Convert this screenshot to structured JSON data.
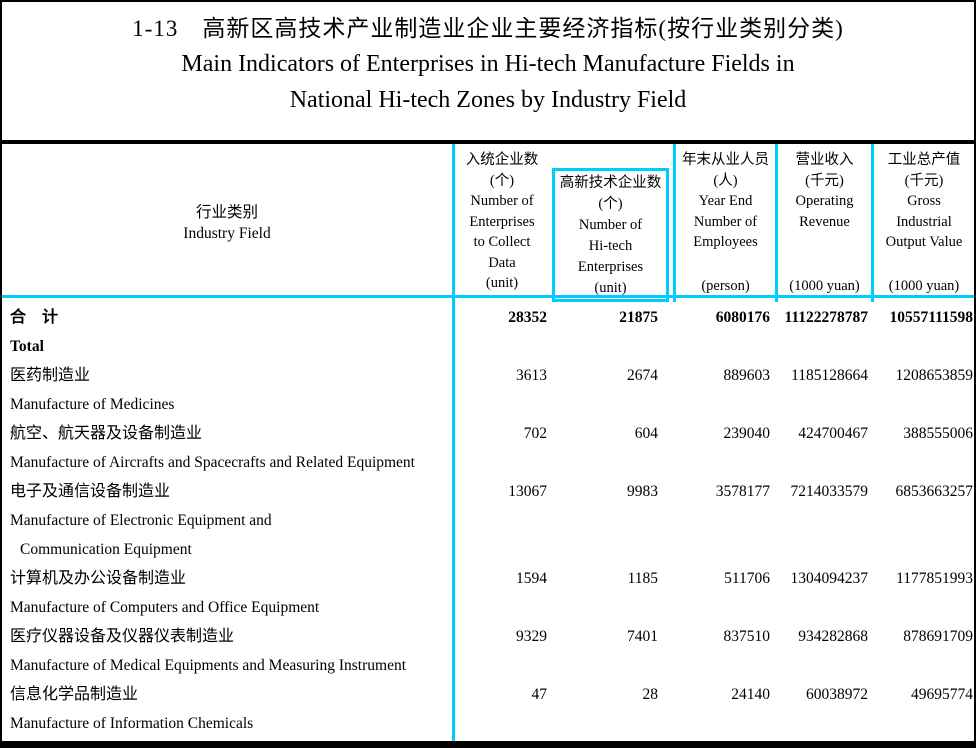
{
  "title": {
    "zh": "1-13　高新区高技术产业制造业企业主要经济指标(按行业类别分类)",
    "en_line1": "Main Indicators of Enterprises in Hi-tech Manufacture Fields in",
    "en_line2": "National Hi-tech Zones by Industry Field"
  },
  "colors": {
    "grid_line": "#00CCFF",
    "rule": "#000000"
  },
  "header": {
    "industry": {
      "zh": "行业类别",
      "en": "Industry Field"
    },
    "col_enterprises": {
      "lines": [
        "入统企业数",
        "(个)",
        "Number of",
        "Enterprises",
        "to Collect",
        "Data",
        "(unit)"
      ]
    },
    "col_hitech": {
      "lines": [
        "高新技术企业数",
        "(个)",
        "Number of",
        "Hi-tech",
        "Enterprises",
        "(unit)"
      ]
    },
    "col_employees": {
      "lines": [
        "年末从业人员",
        "(人)",
        "Year End",
        "Number of",
        "Employees"
      ],
      "unit": "(person)"
    },
    "col_revenue": {
      "lines": [
        "营业收入",
        "(千元)",
        "Operating",
        "Revenue"
      ],
      "unit": "(1000 yuan)"
    },
    "col_output": {
      "lines": [
        "工业总产值",
        "(千元)",
        "Gross",
        "Industrial",
        "Output Value"
      ],
      "unit": "(1000 yuan)"
    }
  },
  "rows": [
    {
      "zh": "合　计",
      "en": [
        "Total"
      ],
      "bold": true,
      "values": [
        "28352",
        "21875",
        "6080176",
        "11122278787",
        "10557111598"
      ]
    },
    {
      "zh": "医药制造业",
      "en": [
        "Manufacture of Medicines"
      ],
      "bold": false,
      "values": [
        "3613",
        "2674",
        "889603",
        "1185128664",
        "1208653859"
      ]
    },
    {
      "zh": "航空、航天器及设备制造业",
      "en": [
        "Manufacture of Aircrafts and Spacecrafts  and Related Equipment"
      ],
      "bold": false,
      "values": [
        "702",
        "604",
        "239040",
        "424700467",
        "388555006"
      ]
    },
    {
      "zh": "电子及通信设备制造业",
      "en": [
        "Manufacture of Electronic Equipment and",
        "Communication Equipment"
      ],
      "bold": false,
      "values": [
        "13067",
        "9983",
        "3578177",
        "7214033579",
        "6853663257"
      ]
    },
    {
      "zh": "计算机及办公设备制造业",
      "en": [
        "Manufacture of Computers and Office Equipment"
      ],
      "bold": false,
      "values": [
        "1594",
        "1185",
        "511706",
        "1304094237",
        "1177851993"
      ]
    },
    {
      "zh": "医疗仪器设备及仪器仪表制造业",
      "en": [
        "Manufacture of Medical Equipments and Measuring Instrument"
      ],
      "bold": false,
      "values": [
        "9329",
        "7401",
        "837510",
        "934282868",
        "878691709"
      ]
    },
    {
      "zh": "信息化学品制造业",
      "en": [
        "Manufacture of Information Chemicals"
      ],
      "bold": false,
      "values": [
        "47",
        "28",
        "24140",
        "60038972",
        "49695774"
      ]
    }
  ]
}
